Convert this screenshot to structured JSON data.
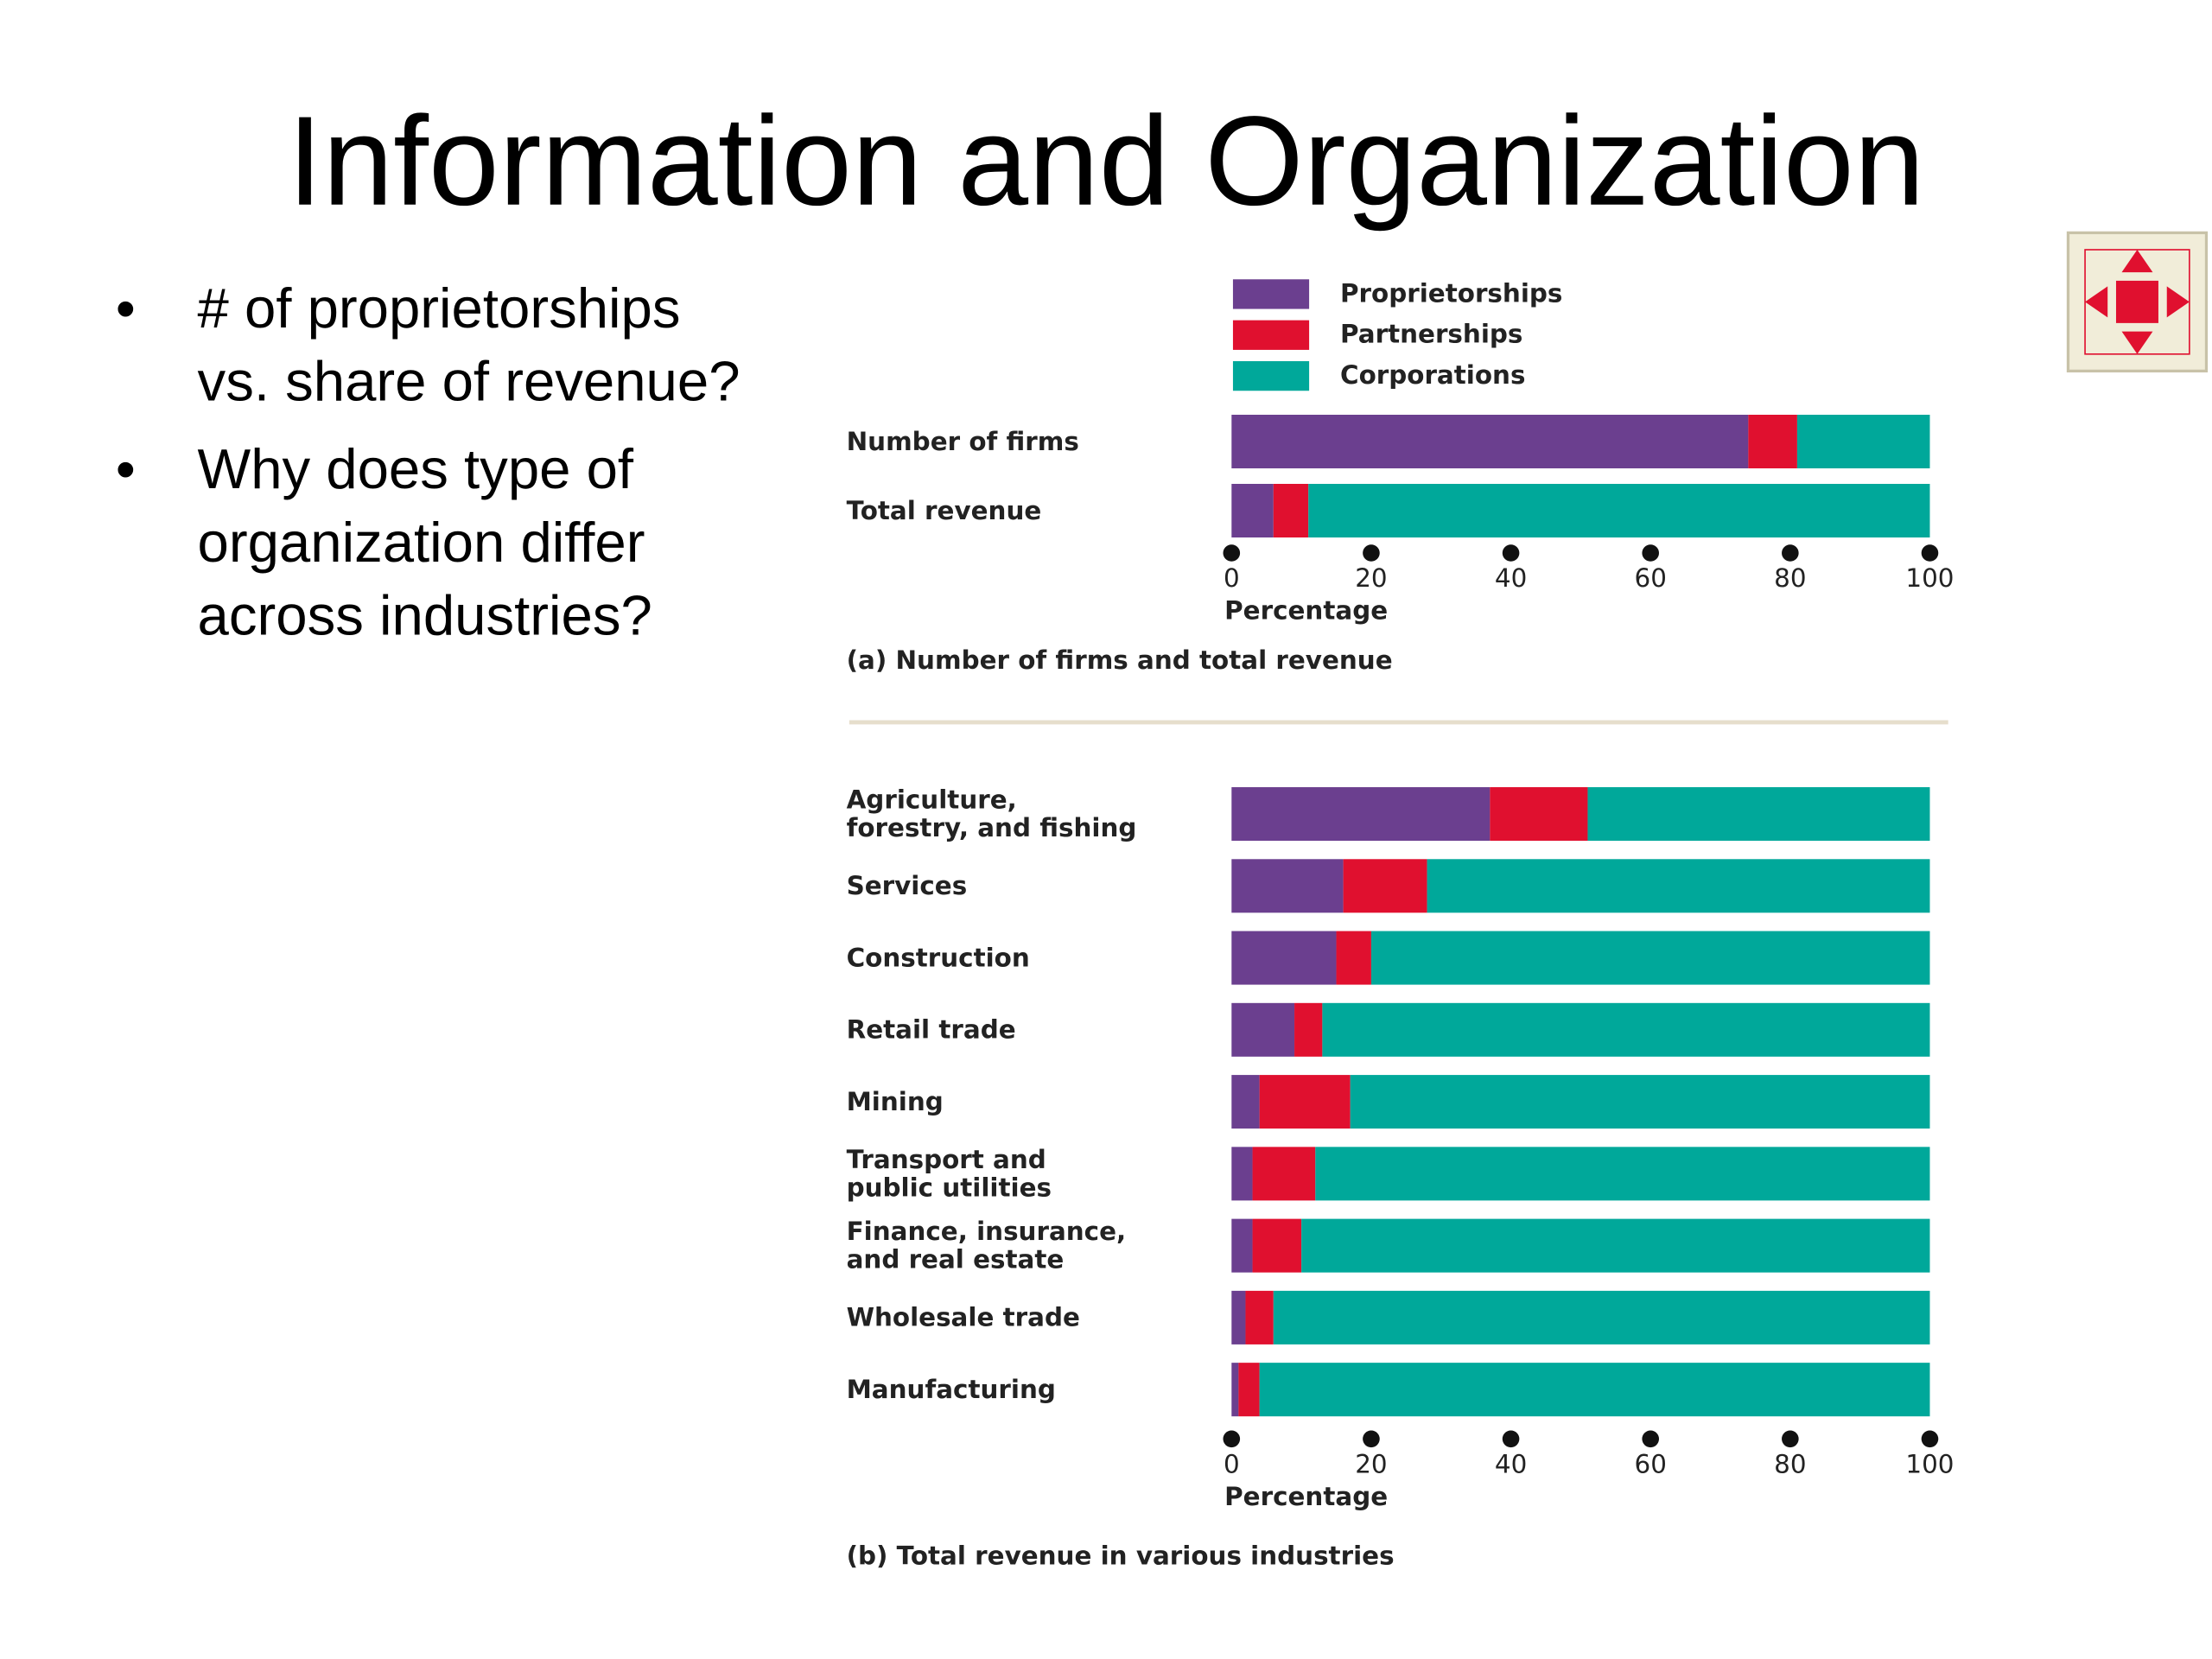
{
  "slide": {
    "title": "Information and Organization",
    "bullets": [
      [
        "# of proprietorships",
        "vs. share of revenue?"
      ],
      [
        "Why does type of",
        "organization differ",
        "across industries?"
      ]
    ]
  },
  "chart_data": [
    {
      "type": "bar",
      "orientation": "horizontal",
      "stacked": true,
      "legend": true,
      "categories": [
        "Number of firms",
        "Total revenue"
      ],
      "series": [
        {
          "name": "Proprietorships",
          "color": "#6b3f8f",
          "values": [
            74,
            6
          ]
        },
        {
          "name": "Partnerships",
          "color": "#e0102f",
          "values": [
            7,
            5
          ]
        },
        {
          "name": "Corporations",
          "color": "#00a89a",
          "values": [
            19,
            89
          ]
        }
      ],
      "xlim": [
        0,
        100
      ],
      "xticks": [
        0,
        20,
        40,
        60,
        80,
        100
      ],
      "xlabel": "Percentage",
      "caption": "(a) Number of firms and total revenue"
    },
    {
      "type": "bar",
      "orientation": "horizontal",
      "stacked": true,
      "legend": false,
      "categories": [
        "Agriculture, forestry, and fishing",
        "Services",
        "Construction",
        "Retail trade",
        "Mining",
        "Transport and public utilities",
        "Finance, insurance, and real estate",
        "Wholesale trade",
        "Manufacturing"
      ],
      "series": [
        {
          "color": "#6b3f8f",
          "values": [
            37,
            16,
            15,
            9,
            4,
            3,
            3,
            2,
            1
          ]
        },
        {
          "color": "#e0102f",
          "values": [
            14,
            12,
            5,
            4,
            13,
            9,
            7,
            4,
            3
          ]
        },
        {
          "color": "#00a89a",
          "values": [
            49,
            72,
            80,
            87,
            83,
            88,
            90,
            94,
            96
          ]
        }
      ],
      "xlim": [
        0,
        100
      ],
      "xticks": [
        0,
        20,
        40,
        60,
        80,
        100
      ],
      "xlabel": "Percentage",
      "caption": "(b) Total revenue in various industries"
    }
  ]
}
